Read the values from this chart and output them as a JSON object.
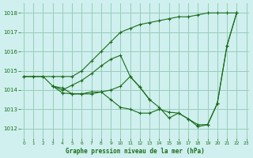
{
  "title": "Graphe pression niveau de la mer (hPa)",
  "bg_color": "#cff0ee",
  "grid_color": "#99ccbb",
  "line_color": "#1a6b1a",
  "ylim": [
    1011.5,
    1018.5
  ],
  "xlim": [
    -0.3,
    23.3
  ],
  "yticks": [
    1012,
    1013,
    1014,
    1015,
    1016,
    1017,
    1018
  ],
  "xticks": [
    0,
    1,
    2,
    3,
    4,
    5,
    6,
    7,
    8,
    9,
    10,
    11,
    12,
    13,
    14,
    15,
    16,
    17,
    18,
    19,
    20,
    21,
    22,
    23
  ],
  "series": [
    {
      "x": [
        0,
        1,
        2,
        3,
        4,
        5,
        6,
        7,
        8,
        9,
        10,
        11,
        12,
        13,
        14,
        15,
        16,
        17,
        18,
        19,
        20,
        21,
        22
      ],
      "y": [
        1014.7,
        1014.7,
        1014.7,
        1014.7,
        1014.7,
        1014.7,
        1015.0,
        1015.5,
        1016.0,
        1016.5,
        1017.0,
        1017.2,
        1017.4,
        1017.5,
        1017.6,
        1017.7,
        1017.8,
        1017.8,
        1017.9,
        1018.0,
        1018.0,
        1018.0,
        1018.0
      ]
    },
    {
      "x": [
        0,
        1,
        2,
        3,
        4,
        5,
        6,
        7,
        8,
        9,
        10,
        11,
        12,
        13,
        14,
        15,
        16,
        17,
        18,
        19,
        20,
        21,
        22
      ],
      "y": [
        1014.7,
        1014.7,
        1014.7,
        1014.2,
        1014.1,
        1013.8,
        1013.8,
        1013.8,
        1013.9,
        1014.0,
        1014.2,
        1014.7,
        1014.15,
        1013.5,
        1013.1,
        1012.55,
        1012.8,
        1012.5,
        1012.2,
        1012.2,
        1013.3,
        1016.3,
        1018.0
      ]
    },
    {
      "x": [
        3,
        4,
        5,
        6,
        7,
        8,
        9,
        10,
        11,
        12,
        13
      ],
      "y": [
        1014.2,
        1014.0,
        1014.25,
        1014.5,
        1014.85,
        1015.25,
        1015.6,
        1015.8,
        1014.7,
        1014.15,
        1013.5
      ]
    },
    {
      "x": [
        3,
        4,
        5,
        6,
        7,
        8,
        9,
        10,
        11,
        12,
        13,
        14,
        15,
        16,
        17,
        18,
        19,
        20,
        21,
        22
      ],
      "y": [
        1014.2,
        1013.85,
        1013.8,
        1013.8,
        1013.9,
        1013.9,
        1013.5,
        1013.1,
        1013.0,
        1012.8,
        1012.8,
        1013.0,
        1012.85,
        1012.8,
        1012.5,
        1012.1,
        1012.2,
        1013.3,
        1016.3,
        1018.0
      ]
    }
  ]
}
